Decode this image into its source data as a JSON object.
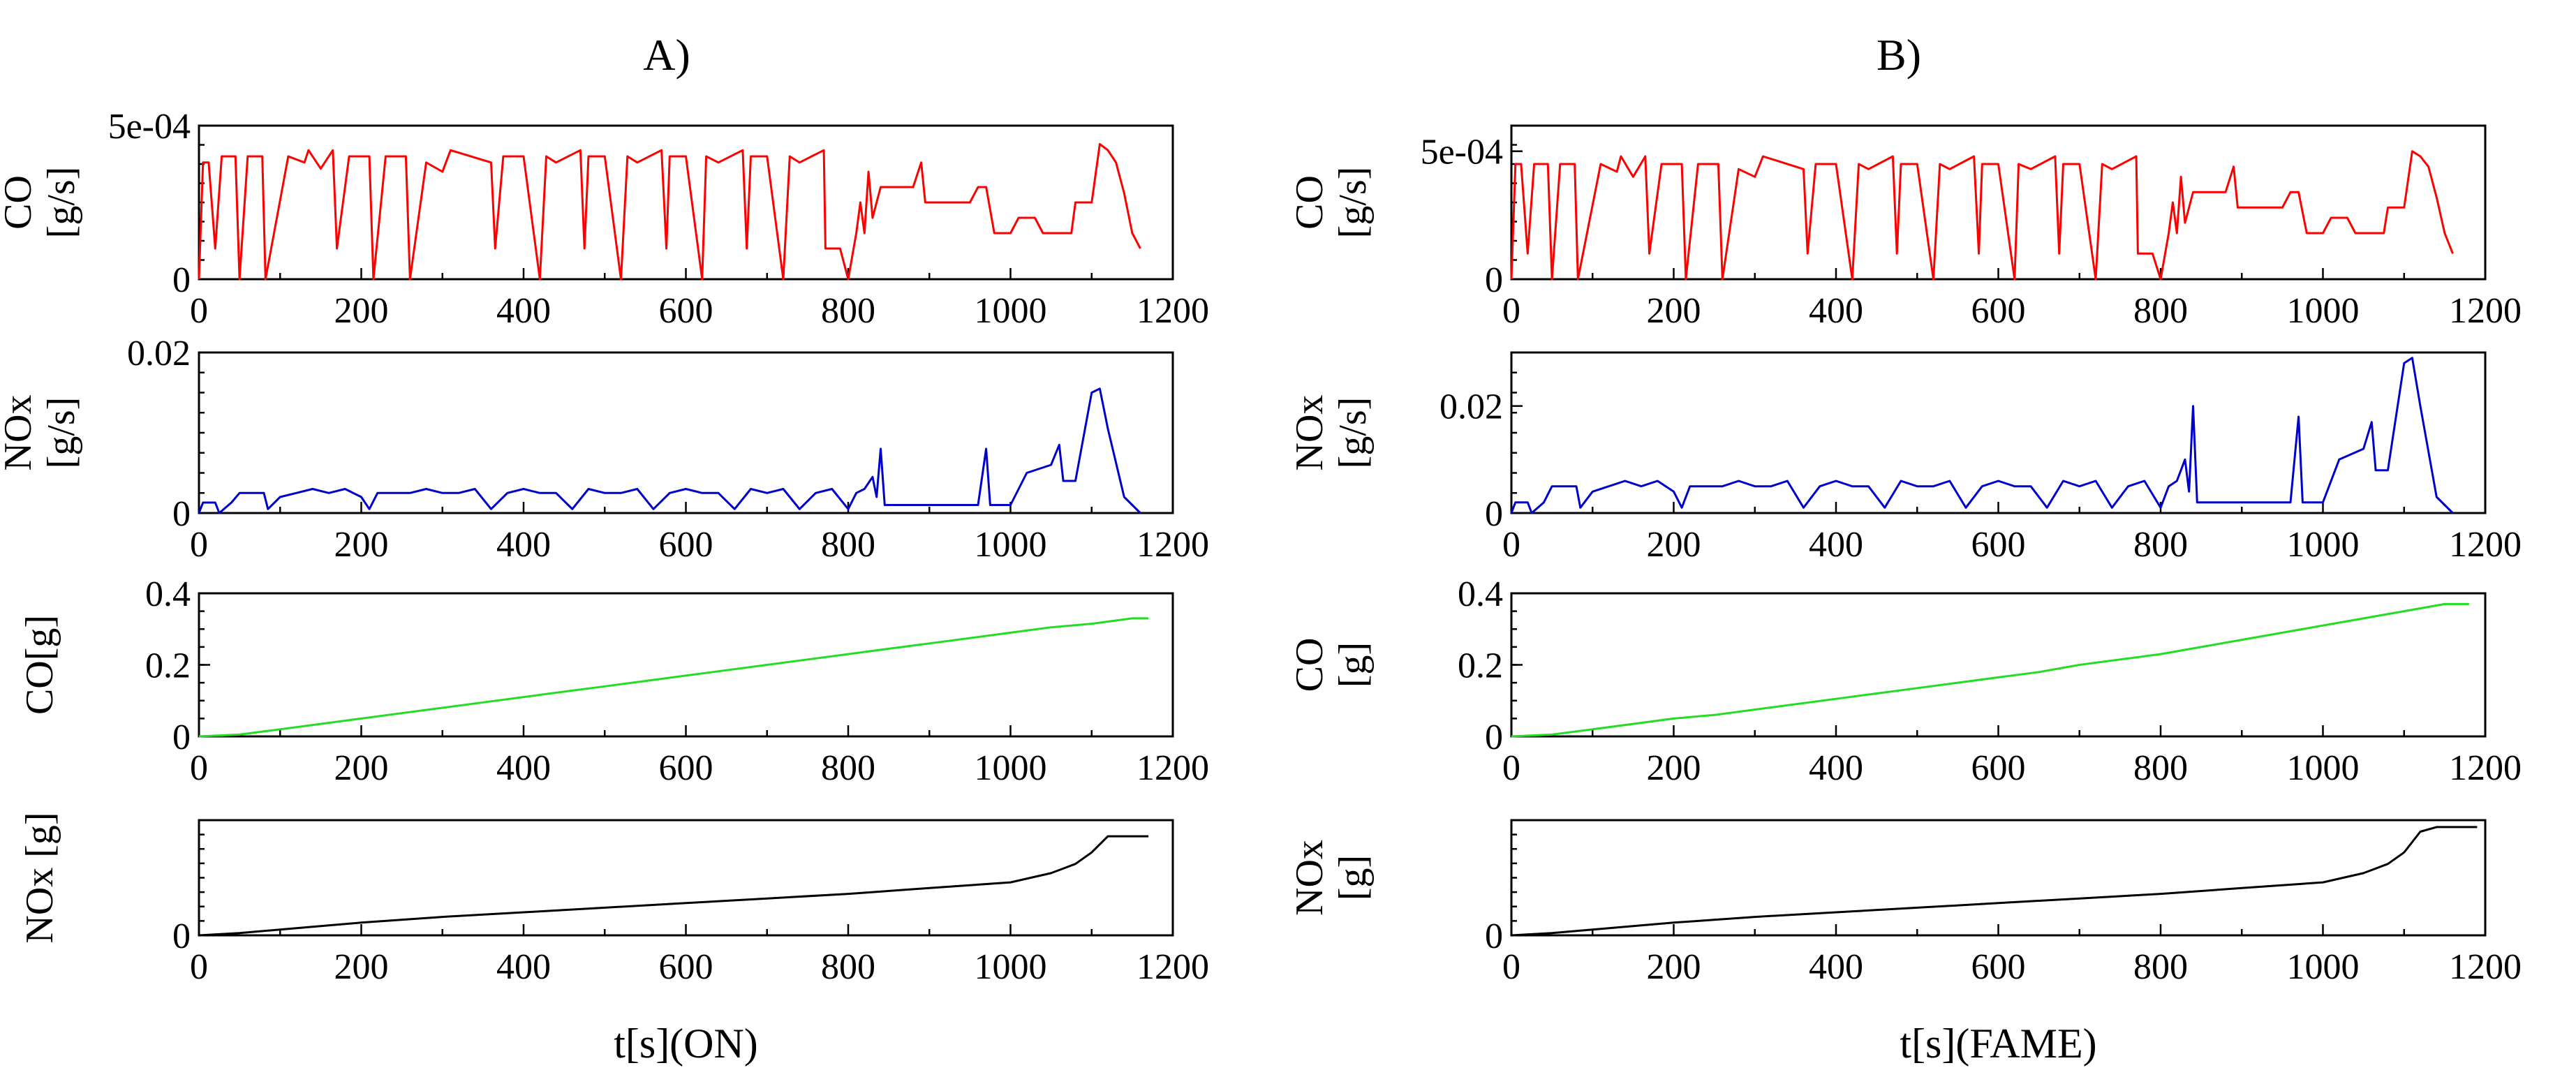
{
  "panels": [
    {
      "id": "A",
      "label": "A)",
      "xlabel": "t[s](ON)",
      "plots": [
        {
          "key": "co_rate",
          "ylabel_lines": [
            "CO",
            "[g/s]"
          ],
          "ytick_labels": [
            "0",
            "5e-04"
          ],
          "ytick_values": [
            0,
            0.0005
          ],
          "ylim": [
            0,
            0.0005
          ]
        },
        {
          "key": "nox_rate",
          "ylabel_lines": [
            "NOx",
            "[g/s]"
          ],
          "ytick_labels": [
            "0",
            "0.02"
          ],
          "ytick_values": [
            0,
            0.02
          ],
          "ylim": [
            0,
            0.02
          ]
        },
        {
          "key": "co_cum",
          "ylabel_lines": [
            "CO[g]"
          ],
          "ytick_labels": [
            "0",
            "0.2",
            "0.4"
          ],
          "ytick_values": [
            0,
            0.2,
            0.4
          ],
          "ylim": [
            0,
            0.4
          ]
        },
        {
          "key": "nox_cum",
          "ylabel_lines": [
            "NOx [g]"
          ],
          "ytick_labels": [
            "0"
          ],
          "ytick_values": [
            0
          ],
          "ylim": [
            0,
            1
          ]
        }
      ]
    },
    {
      "id": "B",
      "label": "B)",
      "xlabel": "t[s](FAME)",
      "plots": [
        {
          "key": "co_rate",
          "ylabel_lines": [
            "CO",
            "[g/s]"
          ],
          "ytick_labels": [
            "0",
            "5e-04"
          ],
          "ytick_values": [
            0,
            0.0005
          ],
          "ylim": [
            0,
            0.0006
          ]
        },
        {
          "key": "nox_rate",
          "ylabel_lines": [
            "NOx",
            "[g/s]"
          ],
          "ytick_labels": [
            "0",
            "0.02"
          ],
          "ytick_values": [
            0,
            0.02
          ],
          "ylim": [
            0,
            0.03
          ]
        },
        {
          "key": "co_cum",
          "ylabel_lines": [
            "CO",
            "[g]"
          ],
          "ytick_labels": [
            "0",
            "0.2",
            "0.4"
          ],
          "ytick_values": [
            0,
            0.2,
            0.4
          ],
          "ylim": [
            0,
            0.4
          ]
        },
        {
          "key": "nox_cum",
          "ylabel_lines": [
            "NOx",
            "[g]"
          ],
          "ytick_labels": [
            "0"
          ],
          "ytick_values": [
            0
          ],
          "ylim": [
            0,
            1
          ]
        }
      ]
    }
  ],
  "x_ticks": [
    0,
    200,
    400,
    600,
    800,
    1000,
    1200
  ],
  "colors": {
    "co_rate": "#ff0000",
    "nox_rate": "#0000cc",
    "co_cum": "#22dd22",
    "nox_cum": "#000000"
  },
  "chart_data": [
    {
      "type": "line",
      "panel": "A",
      "name": "CO rate",
      "ylabel": "CO [g/s]",
      "xlim": [
        0,
        1200
      ],
      "ylim": [
        0,
        0.0005
      ],
      "x": [
        0,
        5,
        12,
        20,
        28,
        45,
        50,
        60,
        78,
        82,
        110,
        130,
        135,
        150,
        165,
        170,
        185,
        210,
        215,
        230,
        255,
        260,
        280,
        300,
        310,
        360,
        365,
        375,
        400,
        420,
        428,
        440,
        470,
        475,
        480,
        500,
        520,
        528,
        540,
        570,
        576,
        580,
        600,
        620,
        625,
        640,
        670,
        675,
        680,
        700,
        720,
        728,
        740,
        770,
        772,
        790,
        800,
        810,
        815,
        820,
        825,
        830,
        840,
        850,
        860,
        880,
        890,
        895,
        900,
        920,
        950,
        960,
        970,
        980,
        1000,
        1010,
        1030,
        1040,
        1060,
        1075,
        1080,
        1100,
        1110,
        1120,
        1130,
        1140,
        1150,
        1160
      ],
      "y": [
        0,
        0.00038,
        0.00038,
        0.0001,
        0.0004,
        0.0004,
        0,
        0.0004,
        0.0004,
        0,
        0.0004,
        0.00038,
        0.00042,
        0.00036,
        0.00042,
        0.0001,
        0.0004,
        0.0004,
        0,
        0.0004,
        0.0004,
        0,
        0.00038,
        0.00035,
        0.00042,
        0.00038,
        0.0001,
        0.0004,
        0.0004,
        0,
        0.0004,
        0.00038,
        0.00042,
        0.0001,
        0.0004,
        0.0004,
        0,
        0.0004,
        0.00038,
        0.00042,
        0.0001,
        0.0004,
        0.0004,
        0,
        0.0004,
        0.00038,
        0.00042,
        0.0001,
        0.0004,
        0.0004,
        0,
        0.0004,
        0.00038,
        0.00042,
        0.0001,
        0.0001,
        0,
        0.00015,
        0.00025,
        0.00015,
        0.00035,
        0.0002,
        0.0003,
        0.0003,
        0.0003,
        0.0003,
        0.00038,
        0.00025,
        0.00025,
        0.00025,
        0.00025,
        0.0003,
        0.0003,
        0.00015,
        0.00015,
        0.0002,
        0.0002,
        0.00015,
        0.00015,
        0.00015,
        0.00025,
        0.00025,
        0.00044,
        0.00042,
        0.00038,
        0.00028,
        0.00015,
        0.0001
      ]
    },
    {
      "type": "line",
      "panel": "A",
      "name": "NOx rate",
      "ylabel": "NOx [g/s]",
      "xlim": [
        0,
        1200
      ],
      "ylim": [
        0,
        0.02
      ],
      "x": [
        0,
        5,
        20,
        25,
        40,
        50,
        55,
        80,
        85,
        100,
        120,
        140,
        160,
        180,
        200,
        210,
        220,
        260,
        280,
        300,
        320,
        340,
        360,
        380,
        400,
        420,
        440,
        460,
        480,
        500,
        520,
        540,
        560,
        580,
        600,
        620,
        640,
        660,
        680,
        700,
        720,
        740,
        760,
        780,
        800,
        810,
        820,
        830,
        835,
        840,
        845,
        880,
        960,
        970,
        975,
        980,
        1000,
        1020,
        1050,
        1060,
        1065,
        1080,
        1100,
        1110,
        1120,
        1140,
        1160
      ],
      "y": [
        0,
        0.0013,
        0.0013,
        0,
        0.0013,
        0.0025,
        0.0025,
        0.0025,
        0.0005,
        0.002,
        0.0025,
        0.003,
        0.0025,
        0.003,
        0.002,
        0.0005,
        0.0025,
        0.0025,
        0.003,
        0.0025,
        0.0025,
        0.003,
        0.0005,
        0.0025,
        0.003,
        0.0025,
        0.0025,
        0.0005,
        0.003,
        0.0025,
        0.0025,
        0.003,
        0.0005,
        0.0025,
        0.003,
        0.0025,
        0.0025,
        0.0005,
        0.003,
        0.0025,
        0.003,
        0.0005,
        0.0025,
        0.003,
        0.0005,
        0.0025,
        0.003,
        0.0045,
        0.002,
        0.008,
        0.001,
        0.001,
        0.001,
        0.008,
        0.001,
        0.001,
        0.001,
        0.005,
        0.006,
        0.0085,
        0.004,
        0.004,
        0.015,
        0.0155,
        0.0105,
        0.002,
        0
      ]
    },
    {
      "type": "line",
      "panel": "A",
      "name": "CO cumulative",
      "ylabel": "CO[g]",
      "xlim": [
        0,
        1200
      ],
      "ylim": [
        0,
        0.4
      ],
      "x": [
        0,
        50,
        100,
        150,
        200,
        250,
        300,
        350,
        400,
        450,
        500,
        550,
        600,
        650,
        700,
        750,
        800,
        850,
        900,
        950,
        1000,
        1050,
        1100,
        1150,
        1170
      ],
      "y": [
        0,
        0.005,
        0.02,
        0.035,
        0.05,
        0.065,
        0.08,
        0.095,
        0.11,
        0.125,
        0.14,
        0.155,
        0.17,
        0.185,
        0.2,
        0.215,
        0.23,
        0.245,
        0.26,
        0.275,
        0.29,
        0.305,
        0.315,
        0.33,
        0.33
      ]
    },
    {
      "type": "line",
      "panel": "A",
      "name": "NOx cumulative",
      "ylabel": "NOx [g]",
      "xlim": [
        0,
        1200
      ],
      "ylim": [
        0,
        1
      ],
      "x": [
        0,
        50,
        100,
        150,
        200,
        300,
        400,
        500,
        600,
        700,
        800,
        900,
        1000,
        1050,
        1080,
        1100,
        1120,
        1140,
        1170
      ],
      "y": [
        0,
        0.02,
        0.05,
        0.08,
        0.11,
        0.16,
        0.2,
        0.24,
        0.28,
        0.32,
        0.36,
        0.41,
        0.46,
        0.54,
        0.62,
        0.72,
        0.86,
        0.86,
        0.86
      ]
    },
    {
      "type": "line",
      "panel": "B",
      "name": "CO rate",
      "ylabel": "CO [g/s]",
      "xlim": [
        0,
        1200
      ],
      "ylim": [
        0,
        0.0006
      ],
      "x": [
        0,
        5,
        12,
        20,
        28,
        45,
        50,
        60,
        78,
        82,
        110,
        130,
        135,
        150,
        165,
        170,
        185,
        210,
        215,
        230,
        255,
        260,
        280,
        300,
        310,
        360,
        365,
        375,
        400,
        420,
        428,
        440,
        470,
        475,
        480,
        500,
        520,
        528,
        540,
        570,
        576,
        580,
        600,
        620,
        625,
        640,
        670,
        675,
        680,
        700,
        720,
        728,
        740,
        770,
        772,
        790,
        800,
        810,
        815,
        820,
        825,
        830,
        840,
        850,
        860,
        880,
        890,
        895,
        900,
        920,
        950,
        960,
        970,
        980,
        1000,
        1010,
        1030,
        1040,
        1060,
        1075,
        1080,
        1100,
        1110,
        1120,
        1130,
        1140,
        1150,
        1160
      ],
      "y": [
        0,
        0.00045,
        0.00045,
        0.0001,
        0.00045,
        0.00045,
        0,
        0.00045,
        0.00045,
        0,
        0.00045,
        0.00042,
        0.00048,
        0.0004,
        0.00048,
        0.0001,
        0.00045,
        0.00045,
        0,
        0.00045,
        0.00045,
        0,
        0.00043,
        0.0004,
        0.00048,
        0.00043,
        0.0001,
        0.00045,
        0.00045,
        0,
        0.00045,
        0.00043,
        0.00048,
        0.0001,
        0.00045,
        0.00045,
        0,
        0.00045,
        0.00043,
        0.00048,
        0.0001,
        0.00045,
        0.00045,
        0,
        0.00045,
        0.00043,
        0.00048,
        0.0001,
        0.00045,
        0.00045,
        0,
        0.00045,
        0.00043,
        0.00048,
        0.0001,
        0.0001,
        0,
        0.00018,
        0.0003,
        0.00018,
        0.0004,
        0.00022,
        0.00034,
        0.00034,
        0.00034,
        0.00034,
        0.00044,
        0.00028,
        0.00028,
        0.00028,
        0.00028,
        0.00034,
        0.00034,
        0.00018,
        0.00018,
        0.00024,
        0.00024,
        0.00018,
        0.00018,
        0.00018,
        0.00028,
        0.00028,
        0.0005,
        0.00048,
        0.00044,
        0.00032,
        0.00018,
        0.0001
      ]
    },
    {
      "type": "line",
      "panel": "B",
      "name": "NOx rate",
      "ylabel": "NOx [g/s]",
      "xlim": [
        0,
        1200
      ],
      "ylim": [
        0,
        0.03
      ],
      "x": [
        0,
        5,
        20,
        25,
        40,
        50,
        55,
        80,
        85,
        100,
        120,
        140,
        160,
        180,
        200,
        210,
        220,
        260,
        280,
        300,
        320,
        340,
        360,
        380,
        400,
        420,
        440,
        460,
        480,
        500,
        520,
        540,
        560,
        580,
        600,
        620,
        640,
        660,
        680,
        700,
        720,
        740,
        760,
        780,
        800,
        810,
        820,
        830,
        835,
        840,
        845,
        880,
        960,
        970,
        975,
        980,
        1000,
        1020,
        1050,
        1060,
        1065,
        1080,
        1100,
        1110,
        1120,
        1140,
        1160
      ],
      "y": [
        0,
        0.002,
        0.002,
        0,
        0.002,
        0.005,
        0.005,
        0.005,
        0.001,
        0.004,
        0.005,
        0.006,
        0.005,
        0.006,
        0.004,
        0.001,
        0.005,
        0.005,
        0.006,
        0.005,
        0.005,
        0.006,
        0.001,
        0.005,
        0.006,
        0.005,
        0.005,
        0.001,
        0.006,
        0.005,
        0.005,
        0.006,
        0.001,
        0.005,
        0.006,
        0.005,
        0.005,
        0.001,
        0.006,
        0.005,
        0.006,
        0.001,
        0.005,
        0.006,
        0.001,
        0.005,
        0.006,
        0.01,
        0.004,
        0.02,
        0.002,
        0.002,
        0.002,
        0.018,
        0.002,
        0.002,
        0.002,
        0.01,
        0.012,
        0.017,
        0.008,
        0.008,
        0.028,
        0.029,
        0.02,
        0.003,
        0
      ]
    },
    {
      "type": "line",
      "panel": "B",
      "name": "CO cumulative",
      "ylabel": "CO [g]",
      "xlim": [
        0,
        1200
      ],
      "ylim": [
        0,
        0.4
      ],
      "x": [
        0,
        50,
        100,
        150,
        200,
        250,
        300,
        350,
        400,
        450,
        500,
        550,
        600,
        650,
        700,
        750,
        800,
        850,
        900,
        950,
        1000,
        1050,
        1100,
        1150,
        1180
      ],
      "y": [
        0,
        0.005,
        0.02,
        0.035,
        0.05,
        0.06,
        0.075,
        0.09,
        0.105,
        0.12,
        0.135,
        0.15,
        0.165,
        0.18,
        0.2,
        0.215,
        0.23,
        0.25,
        0.27,
        0.29,
        0.31,
        0.33,
        0.35,
        0.37,
        0.37
      ]
    },
    {
      "type": "line",
      "panel": "B",
      "name": "NOx cumulative",
      "ylabel": "NOx [g]",
      "xlim": [
        0,
        1200
      ],
      "ylim": [
        0,
        1
      ],
      "x": [
        0,
        50,
        100,
        150,
        200,
        300,
        400,
        500,
        600,
        700,
        800,
        900,
        1000,
        1050,
        1080,
        1100,
        1120,
        1140,
        1170,
        1190
      ],
      "y": [
        0,
        0.02,
        0.05,
        0.08,
        0.11,
        0.16,
        0.2,
        0.24,
        0.28,
        0.32,
        0.36,
        0.41,
        0.46,
        0.54,
        0.62,
        0.72,
        0.9,
        0.94,
        0.94,
        0.94
      ]
    }
  ]
}
